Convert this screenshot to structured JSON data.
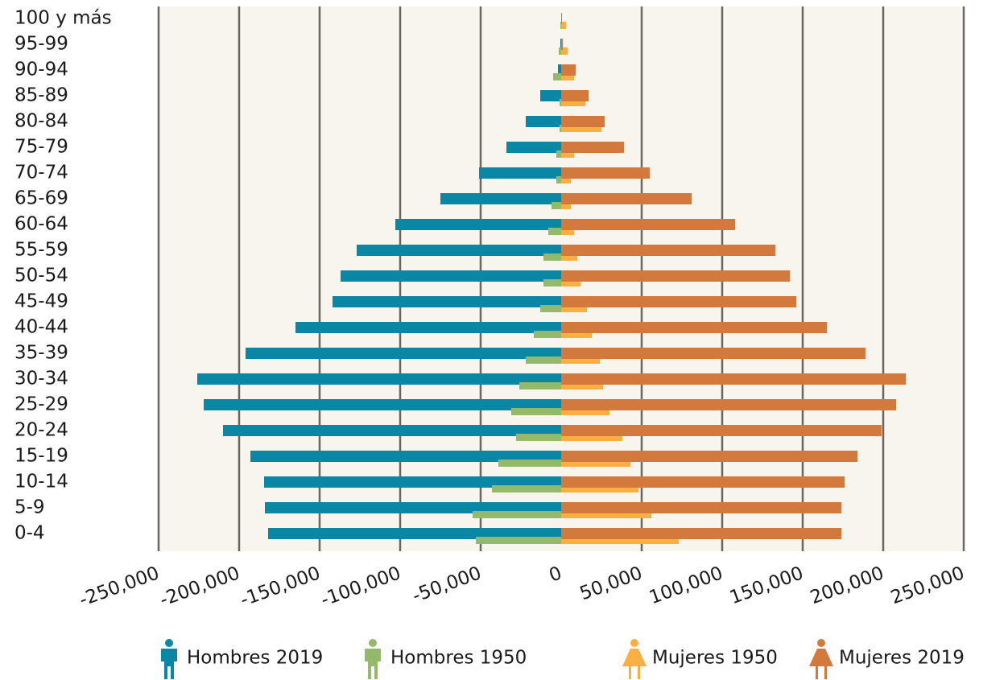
{
  "chart_data": {
    "type": "bar",
    "orientation": "horizontal",
    "categories": [
      "0-4",
      "5-9",
      "10-14",
      "15-19",
      "20-24",
      "25-29",
      "30-34",
      "35-39",
      "40-44",
      "45-49",
      "50-54",
      "55-59",
      "60-64",
      "65-69",
      "70-74",
      "75-79",
      "80-84",
      "85-89",
      "90-94",
      "95-99",
      "100 y más"
    ],
    "series": [
      {
        "name": "Hombres 2019",
        "color": "#0a87a4",
        "values": [
          -182000,
          -184000,
          -184500,
          -193000,
          -210000,
          -222000,
          -226000,
          -196000,
          -165000,
          -142000,
          -137000,
          -127000,
          -103000,
          -75000,
          -51000,
          -34000,
          -22000,
          -13000,
          -2000,
          -500,
          0
        ]
      },
      {
        "name": "Hombres 1950",
        "color": "#94b96b",
        "values": [
          -53000,
          -55000,
          -43000,
          -39000,
          -28000,
          -31000,
          -26000,
          -22000,
          -17000,
          -13000,
          -11000,
          -11000,
          -8000,
          -6000,
          -3000,
          -3000,
          -1000,
          -1000,
          -5000,
          -1500,
          -500
        ]
      },
      {
        "name": "Mujeres 1950",
        "color": "#fbae41",
        "values": [
          73000,
          56000,
          48000,
          43000,
          38000,
          30000,
          26000,
          24000,
          19000,
          16000,
          12000,
          10000,
          8000,
          6000,
          6000,
          8000,
          25000,
          15000,
          8000,
          4000,
          3000
        ]
      },
      {
        "name": "Mujeres 2019",
        "color": "#d4793d",
        "values": [
          174000,
          174000,
          176000,
          184000,
          199000,
          208000,
          214000,
          189000,
          165000,
          146000,
          142000,
          133000,
          108000,
          81000,
          55000,
          39000,
          27000,
          17000,
          9000,
          1000,
          500
        ]
      }
    ],
    "xlim": [
      -250000,
      250000
    ],
    "xticks": [
      {
        "value": -250000,
        "label": "-250,000"
      },
      {
        "value": -200000,
        "label": "-200,000"
      },
      {
        "value": -150000,
        "label": "-150,000"
      },
      {
        "value": -100000,
        "label": "-100,000"
      },
      {
        "value": -50000,
        "label": "-50,000"
      },
      0,
      {
        "value": 50000,
        "label": "50,000"
      },
      {
        "value": 100000,
        "label": "100,000"
      },
      {
        "value": 150000,
        "label": "150,000"
      },
      {
        "value": 200000,
        "label": "200,000"
      },
      {
        "value": 250000,
        "label": "250,000"
      }
    ],
    "grid": true
  }
}
